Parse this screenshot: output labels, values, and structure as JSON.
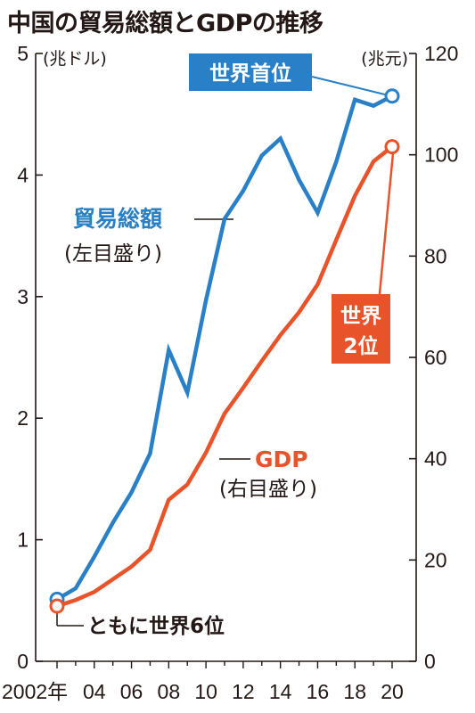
{
  "title": "中国の貿易総額とGDPの推移",
  "chart_data": {
    "type": "line",
    "x": [
      2002,
      2003,
      2004,
      2005,
      2006,
      2007,
      2008,
      2009,
      2010,
      2011,
      2012,
      2013,
      2014,
      2015,
      2016,
      2017,
      2018,
      2019,
      2020
    ],
    "x_tick_labels": [
      "2002年",
      "04",
      "06",
      "08",
      "10",
      "12",
      "14",
      "16",
      "18",
      "20"
    ],
    "left_axis": {
      "unit": "(兆ドル)",
      "ylim": [
        0,
        5
      ],
      "ticks": [
        "0",
        "1",
        "2",
        "3",
        "4",
        "5"
      ]
    },
    "right_axis": {
      "unit": "(兆元)",
      "ylim": [
        0,
        120
      ],
      "ticks": [
        "0",
        "20",
        "40",
        "60",
        "80",
        "100",
        "120"
      ]
    },
    "series": [
      {
        "name": "貿易総額",
        "axis": "left",
        "color": "#2a80c6",
        "values": [
          0.51,
          0.6,
          0.86,
          1.14,
          1.39,
          1.71,
          2.56,
          2.21,
          2.97,
          3.64,
          3.87,
          4.16,
          4.3,
          3.96,
          3.69,
          4.11,
          4.62,
          4.57,
          4.65
        ]
      },
      {
        "name": "GDP",
        "axis": "right",
        "color": "#e8532a",
        "values": [
          10.9,
          12.1,
          13.7,
          16.2,
          18.7,
          22.0,
          31.9,
          34.9,
          41.2,
          48.9,
          54.0,
          59.3,
          64.4,
          68.9,
          74.4,
          83.2,
          91.9,
          98.7,
          101.6
        ]
      }
    ],
    "grid": false
  },
  "labels": {
    "trade_name": "貿易総額",
    "trade_axis_note": "(左目盛り)",
    "gdp_name": "GDP",
    "gdp_axis_note": "(右目盛り)",
    "world_first": "世界首位",
    "world_second_line1": "世界",
    "world_second_line2": "2位",
    "both_sixth": "ともに世界6位"
  }
}
